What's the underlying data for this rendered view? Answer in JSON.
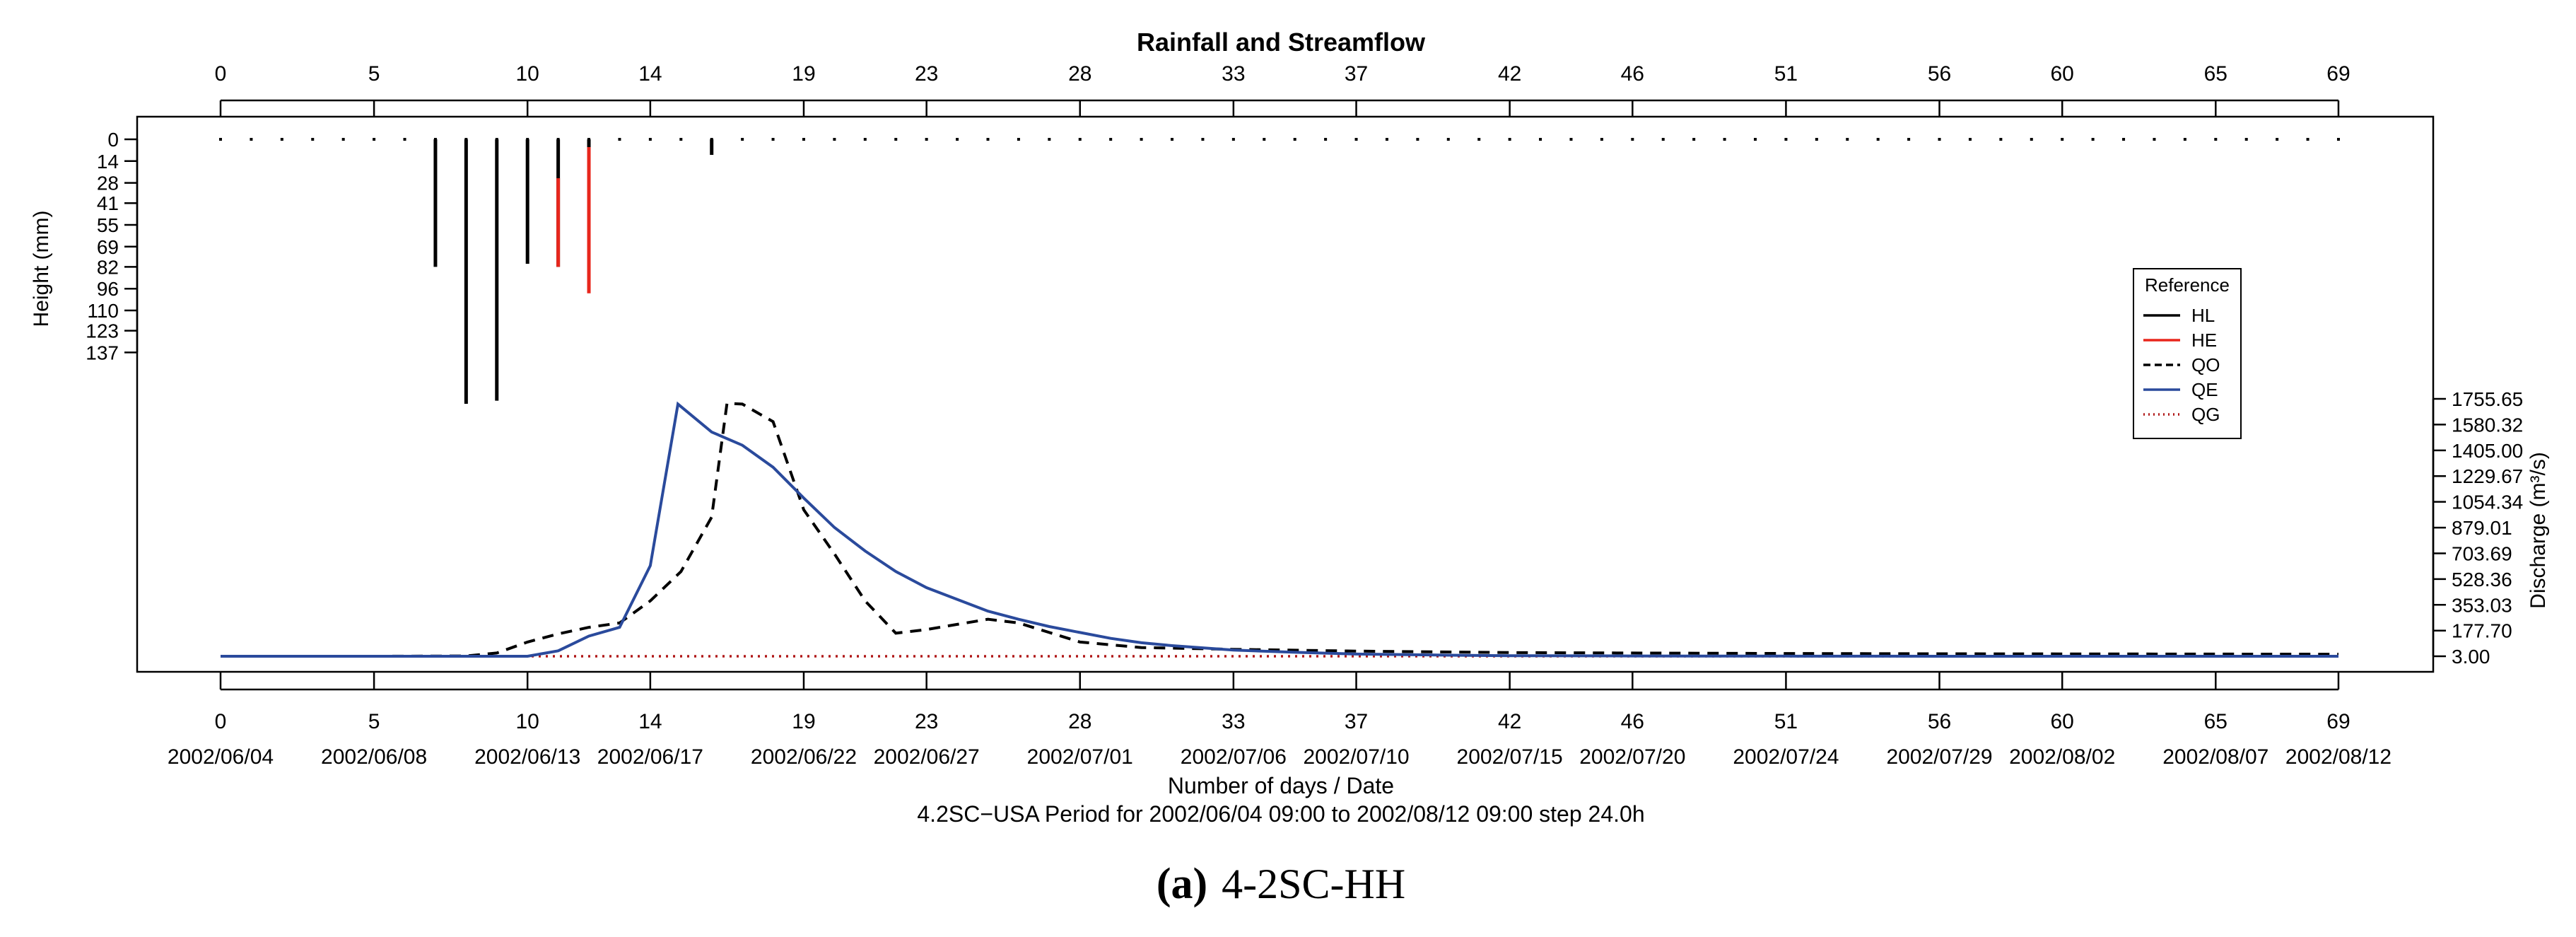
{
  "chart_data": {
    "type": "line",
    "title": "Rainfall and Streamflow",
    "xlabel": "Number of days / Date",
    "subtitle": "4.2SC−USA Period for 2002/06/04 09:00 to 2002/08/12 09:00 step 24.0h",
    "caption_label": "(a)",
    "caption_text": "4-2SC-HH",
    "rain_axis": {
      "label": "Height (mm)",
      "ticks": [
        "0",
        "14",
        "28",
        "41",
        "55",
        "69",
        "82",
        "96",
        "110",
        "123",
        "137"
      ],
      "range": [
        0,
        137
      ]
    },
    "discharge_axis": {
      "label": "Discharge (m³/s)",
      "ticks": [
        "3.00",
        "177.70",
        "353.03",
        "528.36",
        "703.69",
        "879.01",
        "1054.34",
        "1229.67",
        "1405.00",
        "1580.32",
        "1755.65"
      ],
      "range": [
        3,
        1755.65
      ]
    },
    "x_range": [
      0,
      69
    ],
    "top_ticks": [
      "0",
      "5",
      "10",
      "14",
      "19",
      "23",
      "28",
      "33",
      "37",
      "42",
      "46",
      "51",
      "56",
      "60",
      "65",
      "69"
    ],
    "bottom_ticks": [
      {
        "day": "0",
        "date": "2002/06/04"
      },
      {
        "day": "5",
        "date": "2002/06/08"
      },
      {
        "day": "10",
        "date": "2002/06/13"
      },
      {
        "day": "14",
        "date": "2002/06/17"
      },
      {
        "day": "19",
        "date": "2002/06/22"
      },
      {
        "day": "23",
        "date": "2002/06/27"
      },
      {
        "day": "28",
        "date": "2002/07/01"
      },
      {
        "day": "33",
        "date": "2002/07/06"
      },
      {
        "day": "37",
        "date": "2002/07/10"
      },
      {
        "day": "42",
        "date": "2002/07/15"
      },
      {
        "day": "46",
        "date": "2002/07/20"
      },
      {
        "day": "51",
        "date": "2002/07/24"
      },
      {
        "day": "56",
        "date": "2002/07/29"
      },
      {
        "day": "60",
        "date": "2002/08/02"
      },
      {
        "day": "65",
        "date": "2002/08/07"
      },
      {
        "day": "69",
        "date": "2002/08/12"
      }
    ],
    "legend": {
      "title": "Reference",
      "position": "right",
      "entries": [
        {
          "key": "HL",
          "label": "HL",
          "color": "#000000",
          "style": "solid"
        },
        {
          "key": "HE",
          "label": "HE",
          "color": "#e8261c",
          "style": "solid"
        },
        {
          "key": "QO",
          "label": "QO",
          "color": "#000000",
          "style": "dashed"
        },
        {
          "key": "QE",
          "label": "QE",
          "color": "#2a4a9c",
          "style": "solid"
        },
        {
          "key": "QG",
          "label": "QG",
          "color": "#b01818",
          "style": "dotted"
        }
      ]
    },
    "rainfall_HL": [
      {
        "day": 7,
        "mm": 82
      },
      {
        "day": 8,
        "mm": 170
      },
      {
        "day": 9,
        "mm": 168
      },
      {
        "day": 10,
        "mm": 80
      },
      {
        "day": 11,
        "mm": 82
      },
      {
        "day": 12,
        "mm": 5
      },
      {
        "day": 16,
        "mm": 10
      }
    ],
    "rainfall_HE": [
      {
        "day": 11,
        "from": 25,
        "to": 82
      },
      {
        "day": 12,
        "from": 5,
        "to": 99
      }
    ],
    "series": [
      {
        "name": "QO",
        "x": [
          0,
          5,
          8,
          9,
          10,
          11,
          12,
          13,
          14,
          15,
          16,
          16.5,
          17,
          18,
          19,
          20,
          21,
          22,
          23,
          24,
          25,
          26,
          27,
          28,
          30,
          33,
          37,
          42,
          46,
          51,
          56,
          60,
          65,
          69
        ],
        "values": [
          3,
          3,
          5,
          25,
          100,
          155,
          200,
          230,
          380,
          580,
          950,
          1725,
          1720,
          1600,
          1000,
          700,
          380,
          160,
          185,
          220,
          255,
          230,
          165,
          100,
          62,
          50,
          38,
          28,
          25,
          22,
          20,
          19,
          18,
          17
        ]
      },
      {
        "name": "QE",
        "x": [
          0,
          10,
          11,
          12,
          13,
          14,
          14.9,
          16,
          17,
          18,
          19,
          20,
          21,
          22,
          23,
          24,
          25,
          26,
          27,
          28,
          29,
          30,
          31,
          33,
          35,
          37,
          40,
          42,
          46,
          51,
          56,
          60,
          65,
          69
        ],
        "values": [
          3,
          3,
          40,
          140,
          200,
          620,
          1720,
          1530,
          1440,
          1290,
          1080,
          880,
          720,
          580,
          470,
          390,
          310,
          255,
          205,
          165,
          125,
          95,
          75,
          45,
          30,
          18,
          10,
          7,
          5,
          4,
          3,
          3,
          3,
          3
        ]
      },
      {
        "name": "QG",
        "x": [
          0,
          69
        ],
        "values": [
          3,
          3
        ]
      }
    ]
  }
}
